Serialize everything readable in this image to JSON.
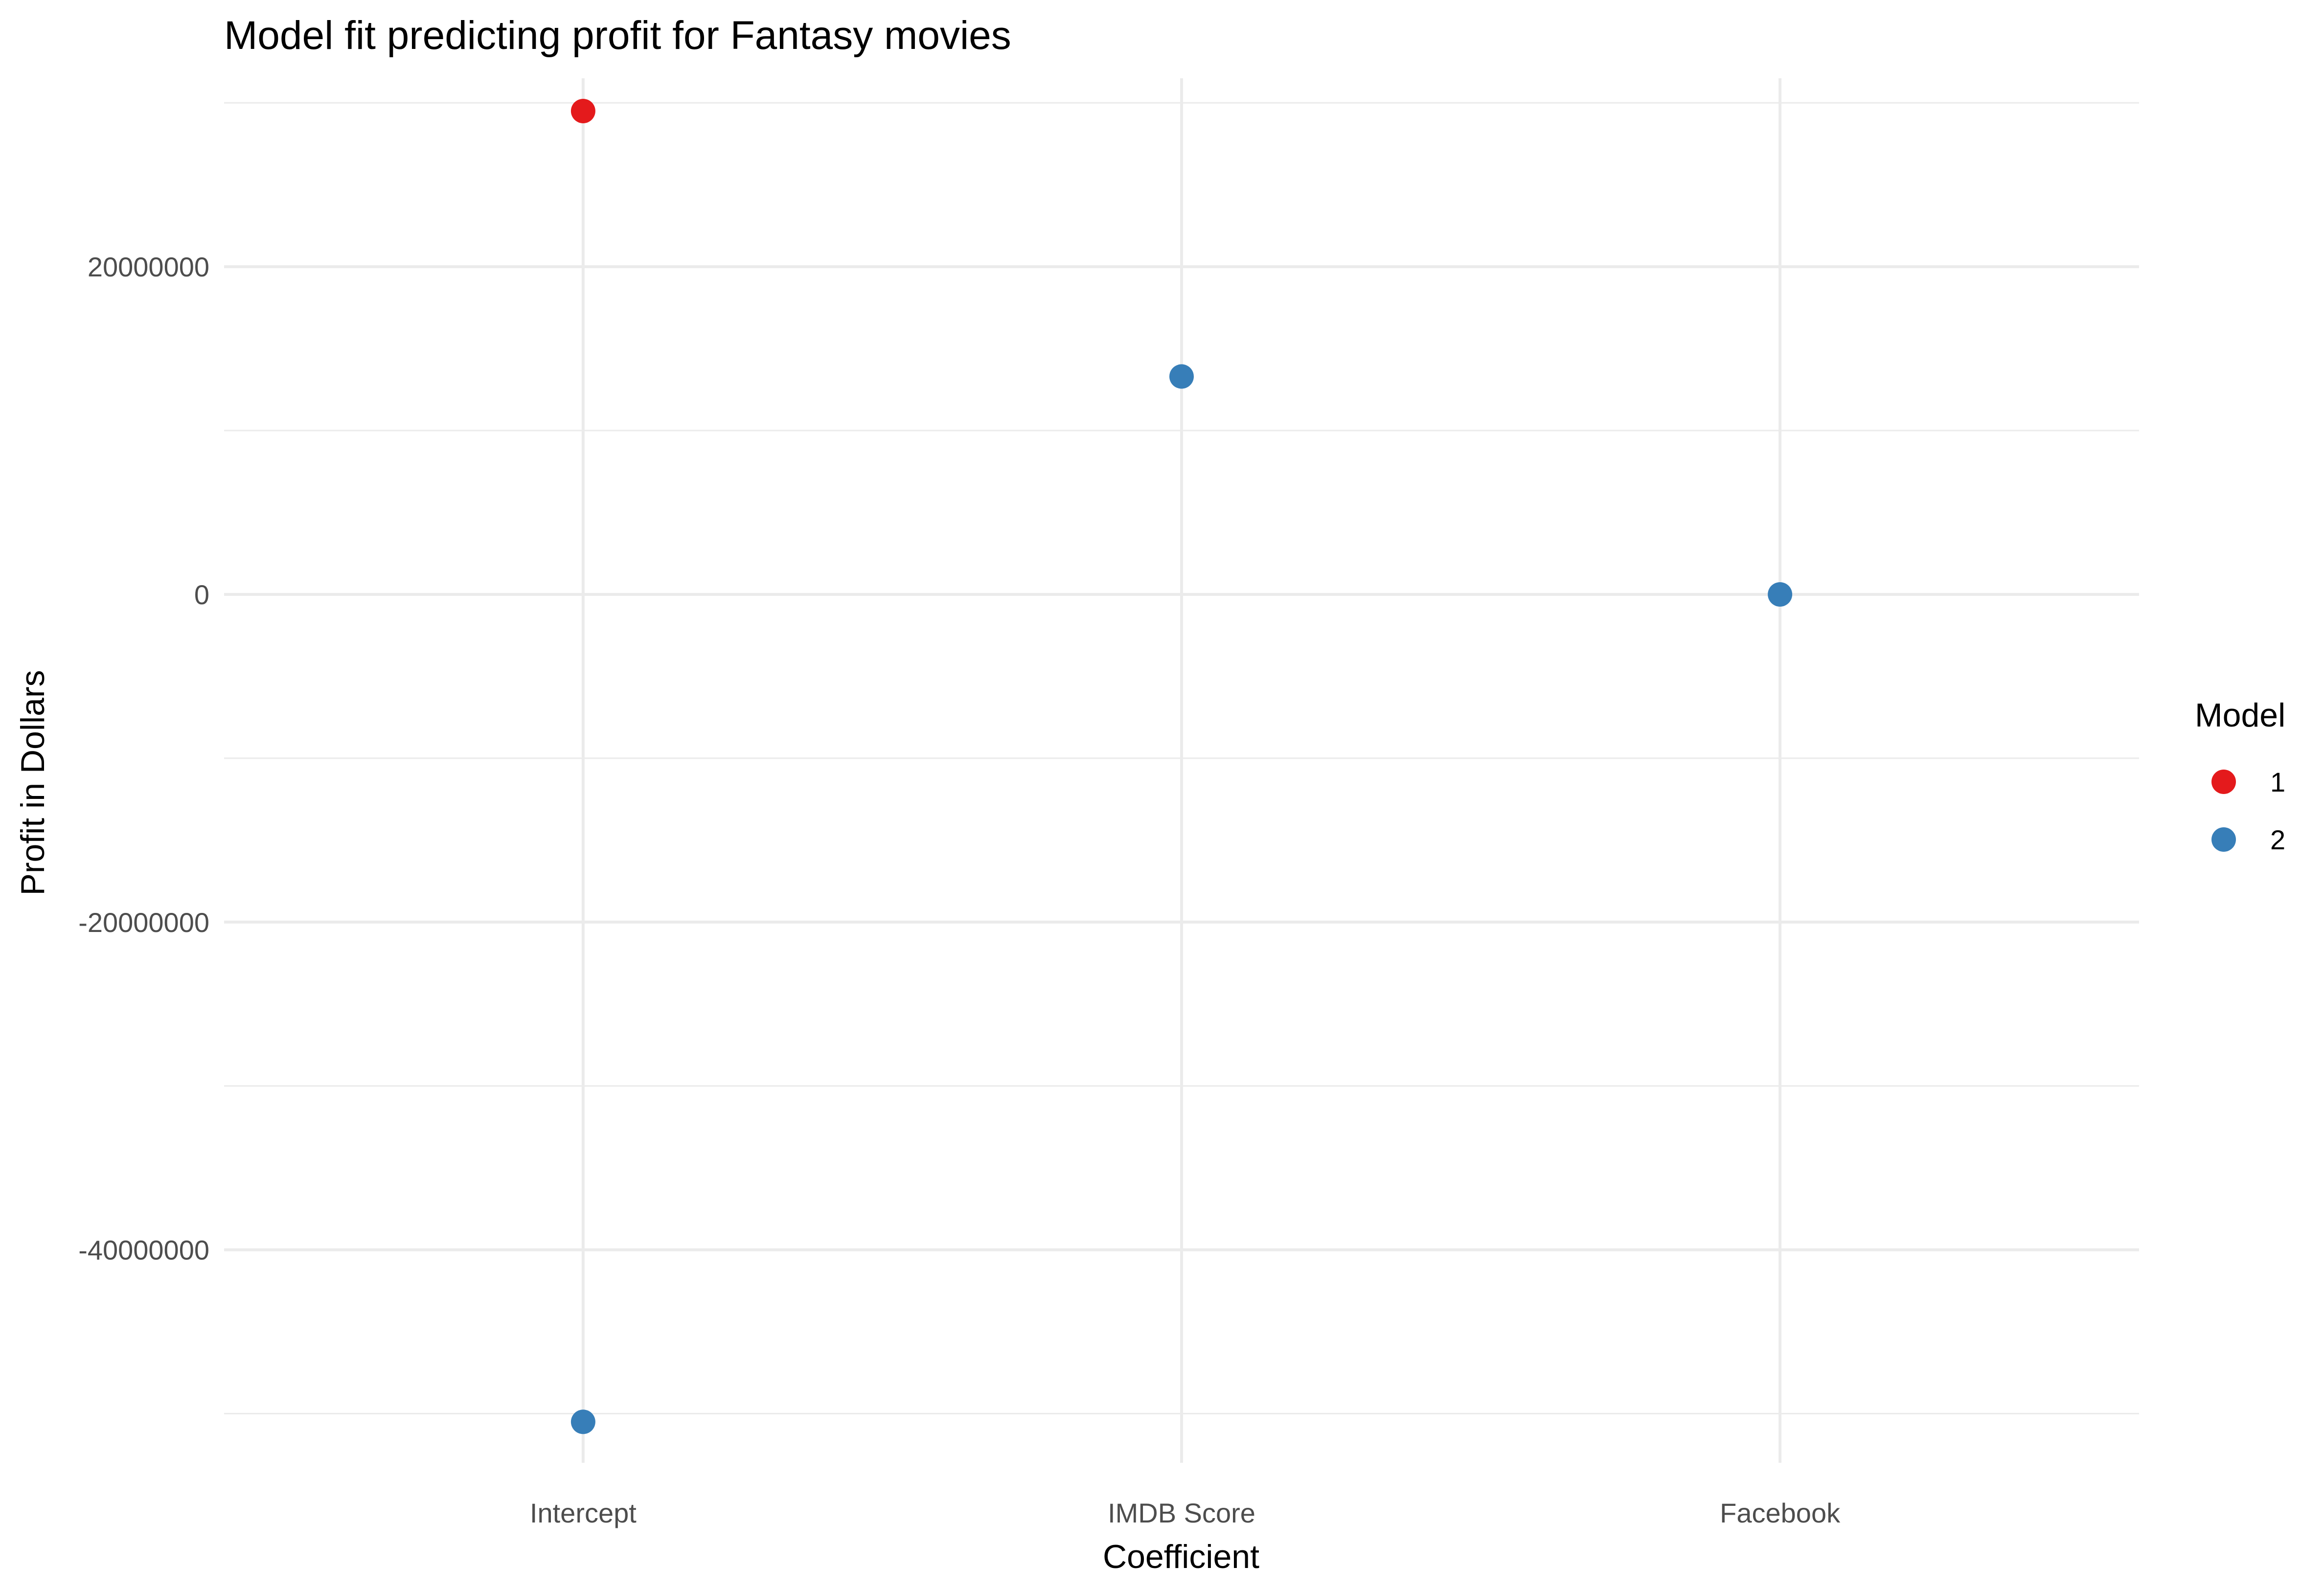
{
  "chart_data": {
    "type": "scatter",
    "title": "Model fit predicting profit for Fantasy movies",
    "xlabel": "Coefficient",
    "ylabel": "Profit in Dollars",
    "categories": [
      "Intercept",
      "IMDB Score",
      "Facebook"
    ],
    "yticks": [
      -40000000,
      -20000000,
      0,
      20000000
    ],
    "ytick_labels": [
      "-40000000",
      "-20000000",
      "0",
      "20000000"
    ],
    "ylim": [
      -53000000,
      31500000
    ],
    "grid": true,
    "legend": {
      "title": "Model",
      "placement": "right",
      "entries": [
        "1",
        "2"
      ]
    },
    "series": [
      {
        "name": "1",
        "color": "#e41a1c",
        "points": [
          {
            "x": "Intercept",
            "y": 29500000
          }
        ]
      },
      {
        "name": "2",
        "color": "#377eb8",
        "points": [
          {
            "x": "Intercept",
            "y": -50500000
          },
          {
            "x": "IMDB Score",
            "y": 13300000
          },
          {
            "x": "Facebook",
            "y": 0
          }
        ]
      }
    ]
  }
}
